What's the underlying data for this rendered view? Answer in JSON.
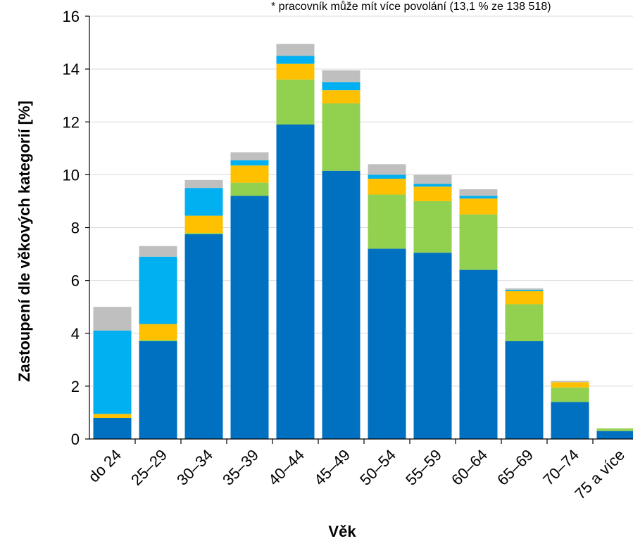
{
  "chart_data": {
    "type": "bar",
    "stacked": true,
    "note": "* pracovník může mít více povolání (13,1 % ze 138 518)",
    "xlabel": "Věk",
    "ylabel": "Zastoupení dle věkových kategorií [%]",
    "ylim": [
      0,
      16
    ],
    "yticks": [
      "0",
      "2",
      "4",
      "6",
      "8",
      "10",
      "12",
      "14",
      "16"
    ],
    "grid": true,
    "categories": [
      "do 24",
      "25–29",
      "30–34",
      "35–39",
      "40–44",
      "45–49",
      "50–54",
      "55–59",
      "60–64",
      "65–69",
      "70–74",
      "75 a více"
    ],
    "series": [
      {
        "color": "#0070C0",
        "values": [
          0.8,
          3.7,
          7.75,
          9.2,
          11.9,
          10.15,
          7.2,
          7.05,
          6.4,
          3.7,
          1.4,
          0.3
        ]
      },
      {
        "color": "#92D050",
        "values": [
          0.0,
          0.05,
          0.05,
          0.5,
          1.7,
          2.55,
          2.05,
          1.95,
          2.1,
          1.4,
          0.55,
          0.1
        ]
      },
      {
        "color": "#FFC000",
        "values": [
          0.15,
          0.6,
          0.65,
          0.65,
          0.6,
          0.5,
          0.6,
          0.55,
          0.6,
          0.5,
          0.2,
          0.0
        ]
      },
      {
        "color": "#00B0F0",
        "values": [
          3.15,
          2.55,
          1.05,
          0.2,
          0.3,
          0.3,
          0.15,
          0.1,
          0.1,
          0.05,
          0.0,
          0.0
        ]
      },
      {
        "color": "#BFBFBF",
        "values": [
          0.9,
          0.4,
          0.3,
          0.3,
          0.45,
          0.45,
          0.4,
          0.35,
          0.25,
          0.05,
          0.05,
          0.0
        ]
      }
    ]
  }
}
